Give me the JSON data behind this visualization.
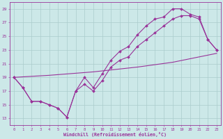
{
  "background_color": "#cce8e8",
  "grid_color": "#aacccc",
  "line_color": "#993399",
  "xlabel": "Windchill (Refroidissement éolien,°C)",
  "xlim_min": -0.5,
  "xlim_max": 23.5,
  "ylim_min": 12.0,
  "ylim_max": 30.0,
  "xticks": [
    0,
    1,
    2,
    3,
    4,
    5,
    6,
    7,
    8,
    9,
    10,
    11,
    12,
    13,
    14,
    15,
    16,
    17,
    18,
    19,
    20,
    21,
    22,
    23
  ],
  "yticks": [
    13,
    15,
    17,
    19,
    21,
    23,
    25,
    27,
    29
  ],
  "line1_x": [
    0,
    1,
    2,
    3,
    4,
    5,
    6,
    7,
    8,
    9,
    10,
    11,
    12,
    13,
    14,
    15,
    16,
    17,
    18,
    19,
    20,
    21,
    22,
    23
  ],
  "line1_y": [
    19,
    17.5,
    15.5,
    15.5,
    15.0,
    14.5,
    13.2,
    17.0,
    19.0,
    17.5,
    19.5,
    21.5,
    22.8,
    23.5,
    25.2,
    26.5,
    27.5,
    27.8,
    29.0,
    29.0,
    28.2,
    27.8,
    24.5,
    23.0
  ],
  "line2_x": [
    0,
    1,
    2,
    3,
    4,
    5,
    6,
    7,
    8,
    9,
    10,
    11,
    12,
    13,
    14,
    15,
    16,
    17,
    18,
    19,
    20,
    21,
    22,
    23
  ],
  "line2_y": [
    19,
    17.5,
    15.5,
    15.5,
    15.0,
    14.5,
    13.2,
    17.0,
    18.0,
    17.0,
    18.5,
    20.5,
    21.5,
    22.0,
    23.5,
    24.5,
    25.5,
    26.5,
    27.5,
    28.0,
    28.0,
    27.5,
    24.5,
    23.0
  ],
  "line3_x": [
    0,
    4,
    9,
    14,
    18,
    23
  ],
  "line3_y": [
    19,
    19.3,
    19.8,
    20.5,
    21.2,
    22.5
  ]
}
